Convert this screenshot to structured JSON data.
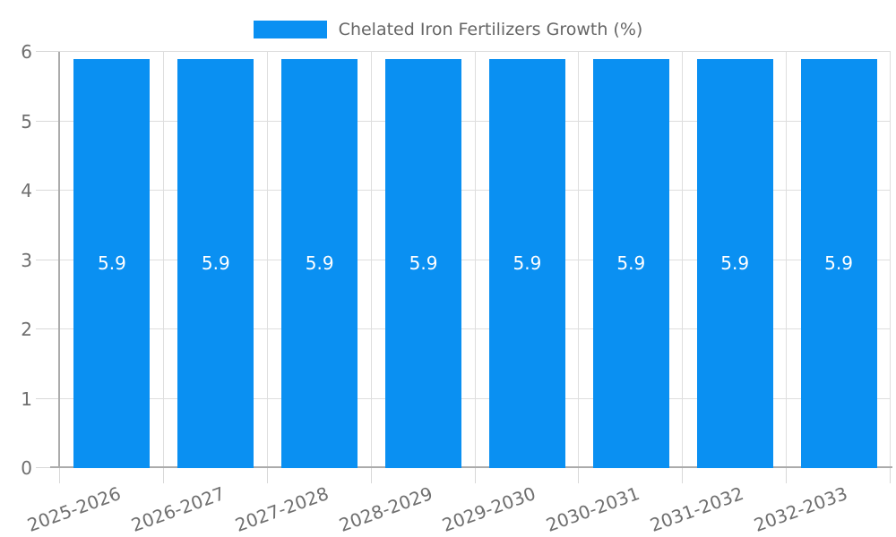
{
  "legend": {
    "label": "Chelated Iron Fertilizers Growth (%)"
  },
  "chart_data": {
    "type": "bar",
    "title": "",
    "xlabel": "",
    "ylabel": "",
    "categories": [
      "2025-2026",
      "2026-2027",
      "2027-2028",
      "2028-2029",
      "2029-2030",
      "2030-2031",
      "2031-2032",
      "2032-2033"
    ],
    "series": [
      {
        "name": "Chelated Iron Fertilizers Growth (%)",
        "values": [
          5.9,
          5.9,
          5.9,
          5.9,
          5.9,
          5.9,
          5.9,
          5.9
        ]
      }
    ],
    "value_labels": [
      "5.9",
      "5.9",
      "5.9",
      "5.9",
      "5.9",
      "5.9",
      "5.9",
      "5.9"
    ],
    "ylim": [
      0,
      6
    ],
    "yticks": [
      0,
      1,
      2,
      3,
      4,
      5,
      6
    ],
    "grid": true,
    "legend_position": "top-center",
    "x_tick_rotation_deg": -20
  },
  "colors": {
    "bar": "#0a90f2",
    "grid": "#dedede",
    "axis": "#ababab",
    "tick_mark": "#d8d8d8",
    "axis_text": "#6f6f6f",
    "legend_text": "#666666",
    "value_label_text": "#ffffff",
    "background": "#ffffff"
  }
}
